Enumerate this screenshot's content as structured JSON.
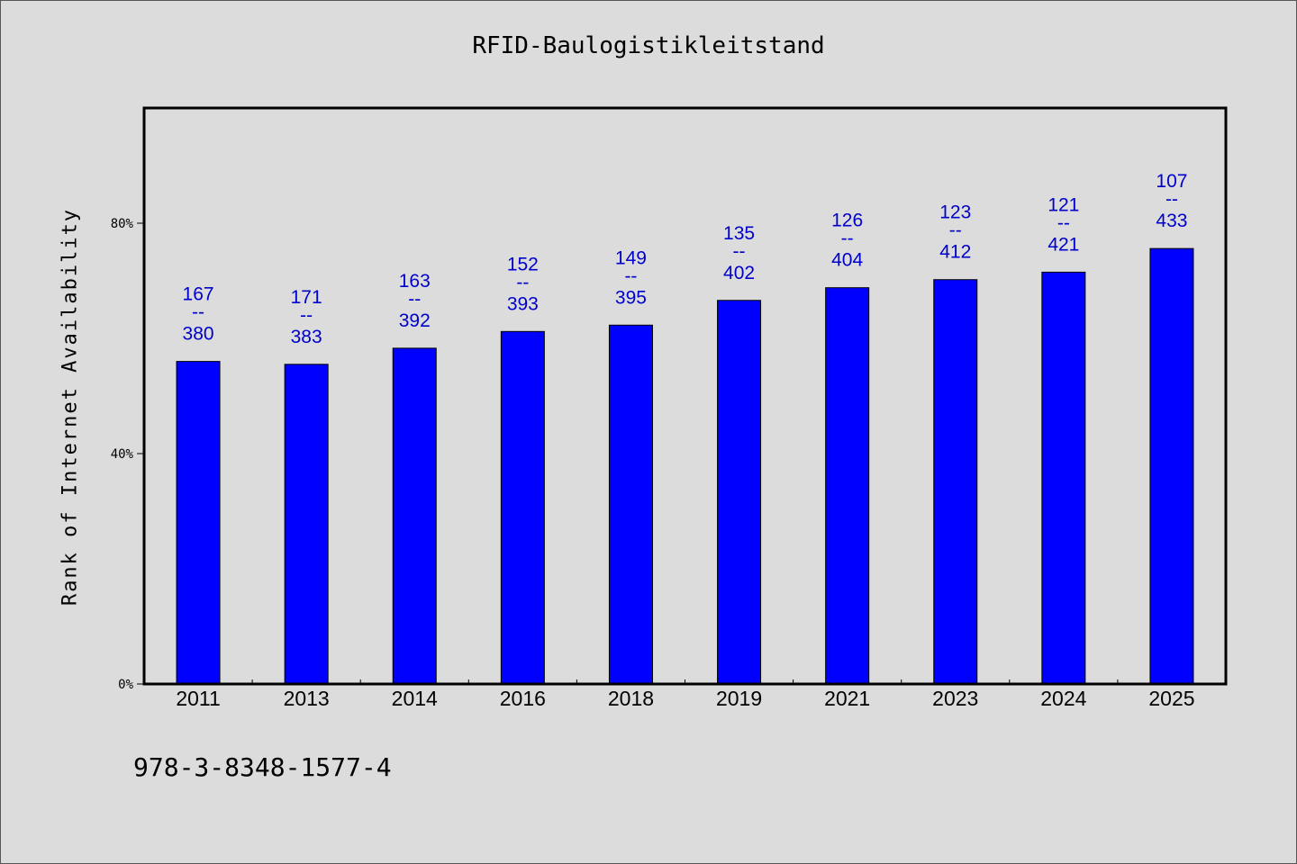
{
  "chart_data": {
    "type": "bar",
    "title": "RFID-Baulogistikleitstand",
    "xlabel": "",
    "ylabel": "Rank of Internet Availability",
    "ylim": [
      0,
      100
    ],
    "yticks": [
      0,
      40,
      80
    ],
    "ytick_labels": [
      "0%",
      "40%",
      "80%"
    ],
    "categories": [
      "2011",
      "2013",
      "2014",
      "2016",
      "2018",
      "2019",
      "2021",
      "2023",
      "2024",
      "2025"
    ],
    "values": [
      56.0,
      55.5,
      58.3,
      61.2,
      62.3,
      66.6,
      68.8,
      70.2,
      71.5,
      75.6
    ],
    "labels": [
      {
        "top": "167",
        "sep": "--",
        "bottom": "380"
      },
      {
        "top": "171",
        "sep": "--",
        "bottom": "383"
      },
      {
        "top": "163",
        "sep": "--",
        "bottom": "392"
      },
      {
        "top": "152",
        "sep": "--",
        "bottom": "393"
      },
      {
        "top": "149",
        "sep": "--",
        "bottom": "395"
      },
      {
        "top": "135",
        "sep": "--",
        "bottom": "402"
      },
      {
        "top": "126",
        "sep": "--",
        "bottom": "404"
      },
      {
        "top": "123",
        "sep": "--",
        "bottom": "412"
      },
      {
        "top": "121",
        "sep": "--",
        "bottom": "421"
      },
      {
        "top": "107",
        "sep": "--",
        "bottom": "433"
      }
    ],
    "bar_color": "#0000ff",
    "label_color": "#0000cc",
    "grid": false,
    "legend": "none"
  },
  "footer": {
    "isbn": "978-3-8348-1577-4"
  }
}
